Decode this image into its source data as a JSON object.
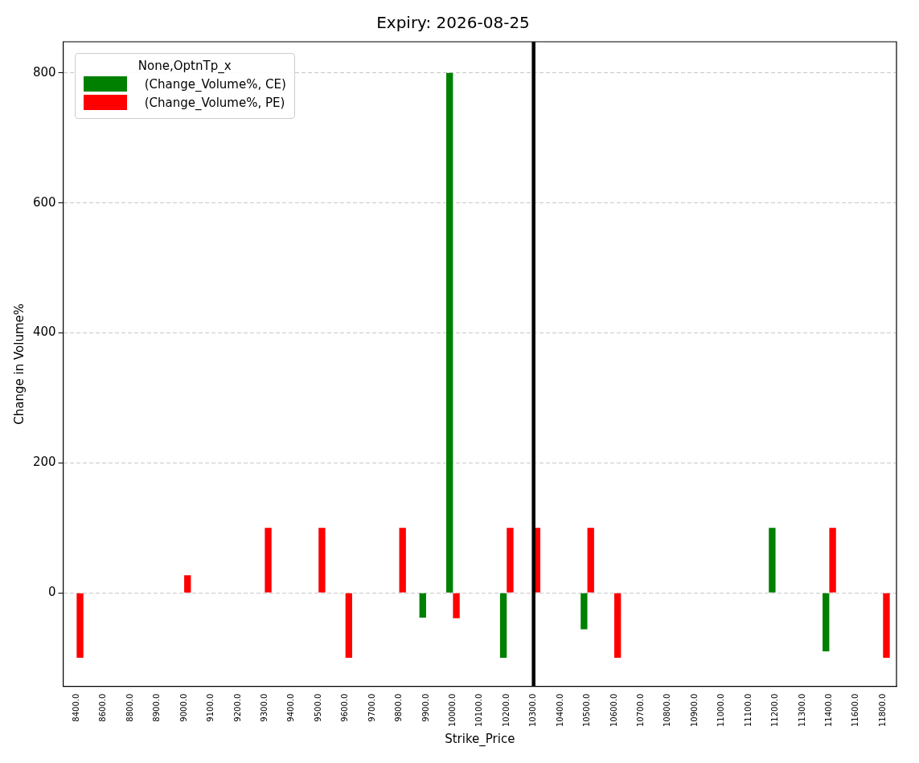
{
  "chart_data": {
    "type": "bar",
    "title": "Expiry: 2026-08-25",
    "xlabel": "Strike_Price",
    "ylabel": "Change in Volume%",
    "legend_title": "None,OptnTp_x",
    "categories": [
      "8400.0",
      "8600.0",
      "8800.0",
      "8900.0",
      "9000.0",
      "9100.0",
      "9200.0",
      "9300.0",
      "9400.0",
      "9500.0",
      "9600.0",
      "9700.0",
      "9800.0",
      "9900.0",
      "10000.0",
      "10100.0",
      "10200.0",
      "10300.0",
      "10400.0",
      "10500.0",
      "10600.0",
      "10700.0",
      "10800.0",
      "10900.0",
      "11000.0",
      "11100.0",
      "11200.0",
      "11300.0",
      "11400.0",
      "11600.0",
      "11800.0"
    ],
    "series": [
      {
        "name": "(Change_Volume%, CE)",
        "color": "#008000",
        "values": [
          null,
          null,
          null,
          null,
          null,
          null,
          null,
          null,
          null,
          null,
          null,
          null,
          null,
          -38,
          800,
          null,
          -100,
          null,
          null,
          -56,
          null,
          null,
          null,
          null,
          null,
          null,
          100,
          null,
          -90,
          null,
          null
        ]
      },
      {
        "name": "(Change_Volume%, PE)",
        "color": "#ff0000",
        "values": [
          -100,
          null,
          null,
          null,
          27,
          null,
          null,
          100,
          null,
          100,
          -100,
          null,
          100,
          null,
          -39,
          null,
          100,
          100,
          null,
          100,
          -100,
          null,
          null,
          null,
          null,
          null,
          null,
          null,
          100,
          null,
          -100
        ]
      }
    ],
    "ylim": [
      -144,
      848
    ],
    "yticks": [
      0,
      200,
      400,
      600,
      800
    ],
    "grid": "y",
    "legend": "top left",
    "ref_lines": [
      {
        "axis": "x",
        "value": "10300.0",
        "color": "#000000",
        "line_style": "solid"
      }
    ]
  }
}
